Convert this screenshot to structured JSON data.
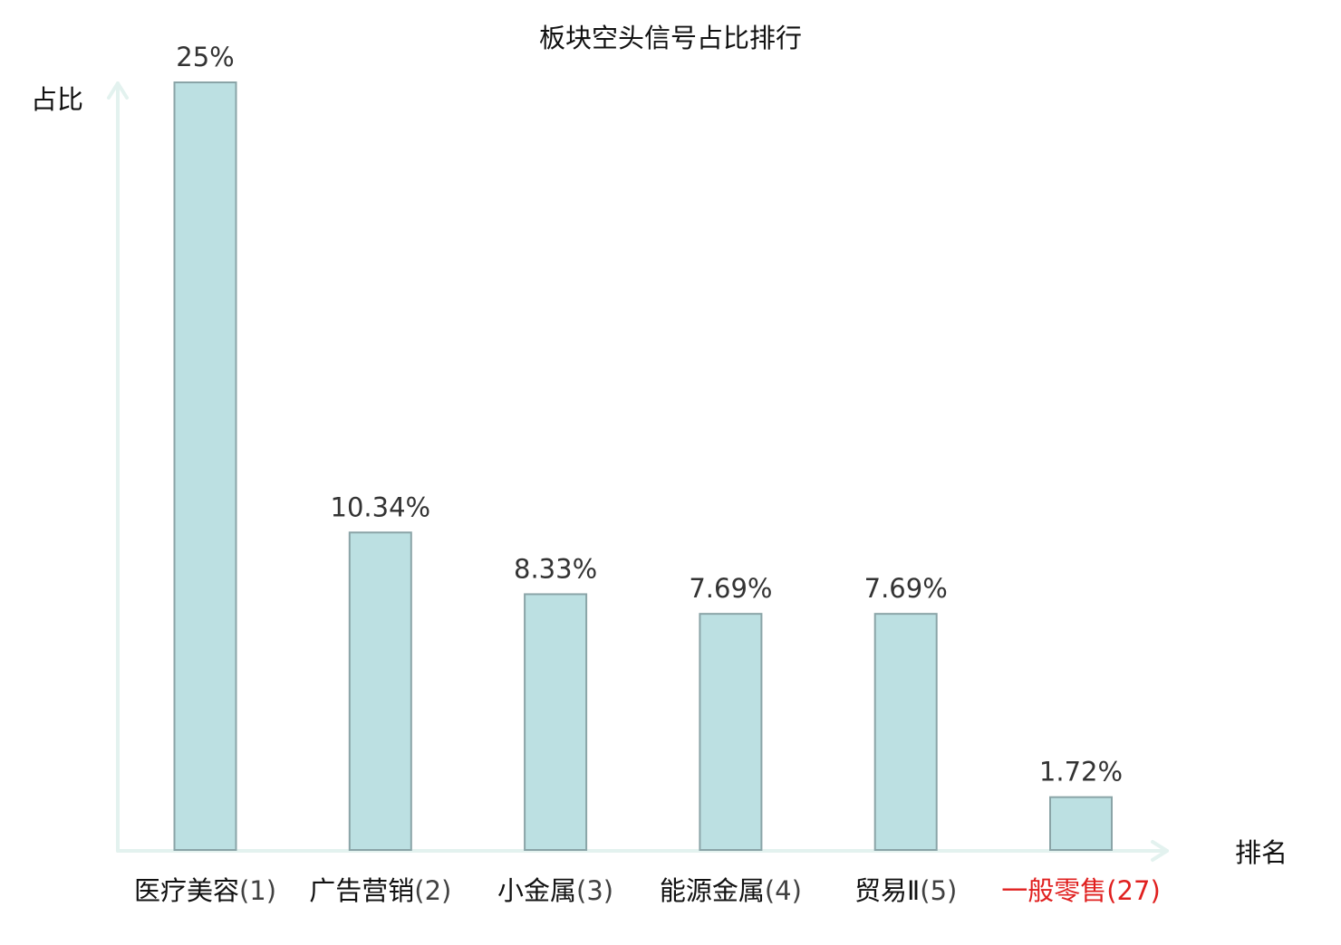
{
  "chart_data": {
    "type": "bar",
    "title": "板块空头信号占比排行",
    "xlabel": "排名",
    "ylabel": "占比",
    "ylim": [
      0,
      25
    ],
    "grid": false,
    "legend": "none",
    "categories": [
      {
        "name": "医疗美容",
        "rank": "(1)",
        "highlight": false
      },
      {
        "name": "广告营销",
        "rank": "(2)",
        "highlight": false
      },
      {
        "name": "小金属",
        "rank": "(3)",
        "highlight": false
      },
      {
        "name": "能源金属",
        "rank": "(4)",
        "highlight": false
      },
      {
        "name": "贸易Ⅱ",
        "rank": "(5)",
        "highlight": false
      },
      {
        "name": "一般零售",
        "rank": "(27)",
        "highlight": true
      }
    ],
    "values": [
      25,
      10.34,
      8.33,
      7.69,
      7.69,
      1.72
    ],
    "value_labels": [
      "25%",
      "10.34%",
      "8.33%",
      "7.69%",
      "7.69%",
      "1.72%"
    ]
  },
  "colors": {
    "bar_fill": "#bce0e2",
    "bar_stroke": "#8aa4a7",
    "axis": "#e3f2ef",
    "text": "#111111",
    "value_label": "#333333",
    "highlight": "#e0201f"
  }
}
